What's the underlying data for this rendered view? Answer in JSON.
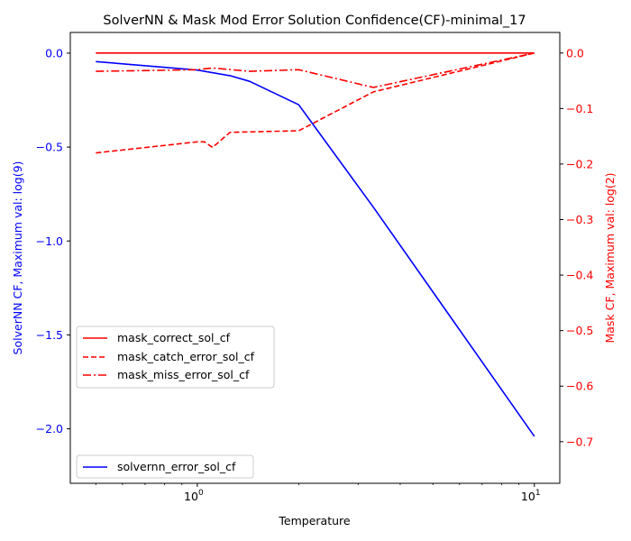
{
  "chart_data": {
    "type": "line",
    "title": "SolverNN & Mask Mod Error Solution Confidence(CF)-minimal_17",
    "xlabel": "Temperature",
    "xscale": "log",
    "xlim": [
      0.42,
      11.9
    ],
    "x_ticks": [
      {
        "value": 1,
        "base": "10",
        "exp": "0"
      },
      {
        "value": 10,
        "base": "10",
        "exp": "1"
      }
    ],
    "left_axis": {
      "label": "SolverNN CF, Maximum val: log(9)",
      "color": "#0000ff",
      "ylim": [
        -2.29,
        0.11
      ],
      "ticks": [
        0.0,
        -0.5,
        -1.0,
        -1.5,
        -2.0
      ],
      "tick_labels": [
        "0.0",
        "−0.5",
        "−1.0",
        "−1.5",
        "−2.0"
      ]
    },
    "right_axis": {
      "label": "Mask CF, Maximum val: log(2)",
      "color": "#ff0000",
      "ylim": [
        -0.775,
        0.037
      ],
      "ticks": [
        0.0,
        -0.1,
        -0.2,
        -0.3,
        -0.4,
        -0.5,
        -0.6,
        -0.7
      ],
      "tick_labels": [
        "0.0",
        "−0.1",
        "−0.2",
        "−0.3",
        "−0.4",
        "−0.5",
        "−0.6",
        "−0.7"
      ]
    },
    "series": [
      {
        "name": "solvernn_error_sol_cf",
        "axis": "left",
        "color": "#0000ff",
        "style": "solid",
        "x": [
          0.5,
          1.0,
          1.25,
          1.43,
          2.0,
          3.33,
          10.0
        ],
        "y": [
          -0.045,
          -0.09,
          -0.12,
          -0.15,
          -0.275,
          -0.82,
          -2.04
        ]
      },
      {
        "name": "mask_correct_sol_cf",
        "axis": "right",
        "color": "#ff0000",
        "style": "solid",
        "x": [
          0.5,
          10.0
        ],
        "y": [
          0.0,
          0.0
        ]
      },
      {
        "name": "mask_catch_error_sol_cf",
        "axis": "right",
        "color": "#ff0000",
        "style": "dashed",
        "x": [
          0.5,
          1.0,
          1.05,
          1.11,
          1.25,
          2.0,
          3.33,
          10.0
        ],
        "y": [
          -0.18,
          -0.16,
          -0.16,
          -0.17,
          -0.143,
          -0.14,
          -0.07,
          0.0
        ]
      },
      {
        "name": "mask_miss_error_sol_cf",
        "axis": "right",
        "color": "#ff0000",
        "style": "dashdot",
        "x": [
          0.5,
          1.0,
          1.11,
          1.43,
          2.0,
          3.33,
          10.0
        ],
        "y": [
          -0.033,
          -0.03,
          -0.027,
          -0.033,
          -0.03,
          -0.062,
          0.0
        ]
      }
    ],
    "legends": [
      {
        "position": "center-left",
        "entries": [
          "mask_correct_sol_cf",
          "mask_catch_error_sol_cf",
          "mask_miss_error_sol_cf"
        ]
      },
      {
        "position": "bottom-left",
        "entries": [
          "solvernn_error_sol_cf"
        ]
      }
    ],
    "grid": false
  }
}
